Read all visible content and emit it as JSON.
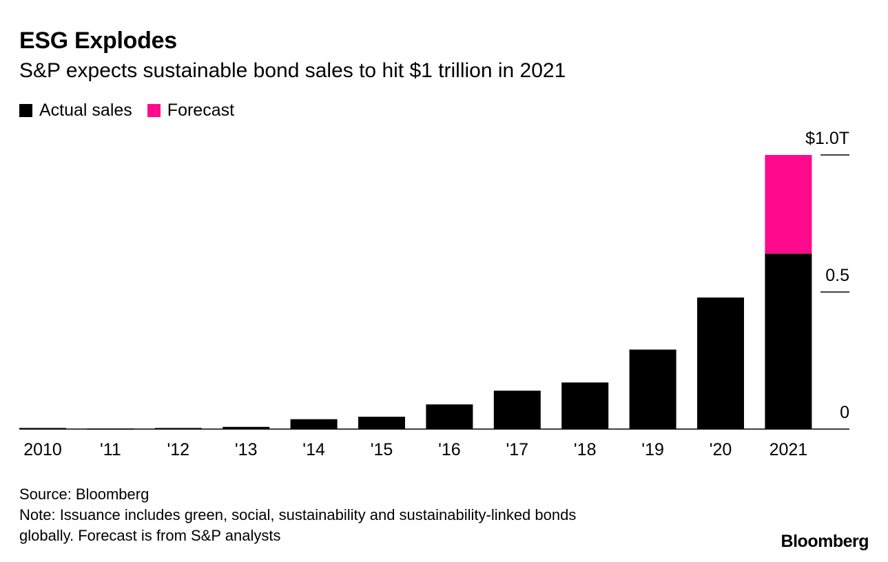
{
  "title": "ESG Explodes",
  "subtitle": "S&P expects sustainable bond sales to hit $1 trillion in 2021",
  "legend": [
    {
      "label": "Actual sales",
      "color": "#000000"
    },
    {
      "label": "Forecast",
      "color": "#ff0a8c"
    }
  ],
  "chart_data": {
    "type": "bar",
    "stacked": true,
    "categories": [
      "2010",
      "'11",
      "'12",
      "'13",
      "'14",
      "'15",
      "'16",
      "'17",
      "'18",
      "'19",
      "'20",
      "2021"
    ],
    "series": [
      {
        "name": "Actual sales",
        "color": "#000000",
        "values": [
          0.004,
          0.002,
          0.004,
          0.008,
          0.036,
          0.045,
          0.09,
          0.14,
          0.17,
          0.29,
          0.48,
          0.64
        ]
      },
      {
        "name": "Forecast",
        "color": "#ff0a8c",
        "values": [
          0,
          0,
          0,
          0,
          0,
          0,
          0,
          0,
          0,
          0,
          0,
          0.36
        ]
      }
    ],
    "y_ticks": [
      {
        "value": 1.0,
        "label": "$1.0T"
      },
      {
        "value": 0.5,
        "label": "0.5"
      },
      {
        "value": 0,
        "label": "0"
      }
    ],
    "ylim": [
      0,
      1.0
    ],
    "y_axis_position": "right",
    "grid": false,
    "xlabel": "",
    "ylabel": ""
  },
  "footer": {
    "source": "Source: Bloomberg",
    "note_line1": "Note: Issuance includes green, social, sustainability and sustainability-linked bonds",
    "note_line2": "globally. Forecast is from S&P analysts",
    "brand": "Bloomberg"
  }
}
